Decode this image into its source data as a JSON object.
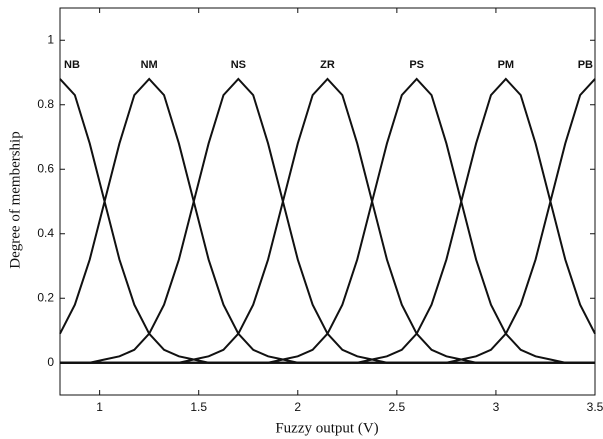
{
  "chart_data": {
    "type": "line",
    "xlabel": "Fuzzy output (V)",
    "ylabel": "Degree of membership",
    "xlim": [
      0.8,
      3.5
    ],
    "ylim": [
      -0.1,
      1.1
    ],
    "xticks": [
      1,
      1.5,
      2,
      2.5,
      3,
      3.5
    ],
    "yticks": [
      0,
      0.2,
      0.4,
      0.6,
      0.8,
      1
    ],
    "grid": false,
    "color": "#111111",
    "x": [
      0.8,
      0.875,
      0.95,
      1.025,
      1.1,
      1.175,
      1.25,
      1.325,
      1.4,
      1.475,
      1.55,
      1.625,
      1.7,
      1.775,
      1.85,
      1.925,
      2,
      2.075,
      2.15,
      2.225,
      2.3,
      2.375,
      2.45,
      2.525,
      2.6,
      2.675,
      2.75,
      2.825,
      2.9,
      2.975,
      3.05,
      3.125,
      3.2,
      3.275,
      3.35,
      3.425,
      3.5
    ],
    "series": [
      {
        "name": "NB",
        "values": [
          0.88,
          0.83,
          0.68,
          0.5,
          0.32,
          0.18,
          0.09,
          0.04,
          0.02,
          0.01,
          0,
          0,
          0,
          0,
          0,
          0,
          0,
          0,
          0,
          0,
          0,
          0,
          0,
          0,
          0,
          0,
          0,
          0,
          0,
          0,
          0,
          0,
          0,
          0,
          0,
          0,
          0
        ]
      },
      {
        "name": "NM",
        "values": [
          0.09,
          0.18,
          0.32,
          0.5,
          0.68,
          0.83,
          0.88,
          0.83,
          0.68,
          0.5,
          0.32,
          0.18,
          0.09,
          0.04,
          0.02,
          0.01,
          0,
          0,
          0,
          0,
          0,
          0,
          0,
          0,
          0,
          0,
          0,
          0,
          0,
          0,
          0,
          0,
          0,
          0,
          0,
          0,
          0
        ]
      },
      {
        "name": "NS",
        "values": [
          0,
          0,
          0,
          0.01,
          0.02,
          0.04,
          0.09,
          0.18,
          0.32,
          0.5,
          0.68,
          0.83,
          0.88,
          0.83,
          0.68,
          0.5,
          0.32,
          0.18,
          0.09,
          0.04,
          0.02,
          0.01,
          0,
          0,
          0,
          0,
          0,
          0,
          0,
          0,
          0,
          0,
          0,
          0,
          0,
          0,
          0
        ]
      },
      {
        "name": "ZR",
        "values": [
          0,
          0,
          0,
          0,
          0,
          0,
          0,
          0,
          0,
          0.01,
          0.02,
          0.04,
          0.09,
          0.18,
          0.32,
          0.5,
          0.68,
          0.83,
          0.88,
          0.83,
          0.68,
          0.5,
          0.32,
          0.18,
          0.09,
          0.04,
          0.02,
          0.01,
          0,
          0,
          0,
          0,
          0,
          0,
          0,
          0,
          0
        ]
      },
      {
        "name": "PS",
        "values": [
          0,
          0,
          0,
          0,
          0,
          0,
          0,
          0,
          0,
          0,
          0,
          0,
          0,
          0,
          0,
          0.01,
          0.02,
          0.04,
          0.09,
          0.18,
          0.32,
          0.5,
          0.68,
          0.83,
          0.88,
          0.83,
          0.68,
          0.5,
          0.32,
          0.18,
          0.09,
          0.04,
          0.02,
          0.01,
          0,
          0,
          0
        ]
      },
      {
        "name": "PM",
        "values": [
          0,
          0,
          0,
          0,
          0,
          0,
          0,
          0,
          0,
          0,
          0,
          0,
          0,
          0,
          0,
          0,
          0,
          0,
          0,
          0,
          0,
          0.01,
          0.02,
          0.04,
          0.09,
          0.18,
          0.32,
          0.5,
          0.68,
          0.83,
          0.88,
          0.83,
          0.68,
          0.5,
          0.32,
          0.18,
          0.09
        ]
      },
      {
        "name": "PB",
        "values": [
          0,
          0,
          0,
          0,
          0,
          0,
          0,
          0,
          0,
          0,
          0,
          0,
          0,
          0,
          0,
          0,
          0,
          0,
          0,
          0,
          0,
          0,
          0,
          0,
          0,
          0,
          0,
          0.01,
          0.02,
          0.04,
          0.09,
          0.18,
          0.32,
          0.5,
          0.68,
          0.83,
          0.88
        ]
      }
    ]
  }
}
